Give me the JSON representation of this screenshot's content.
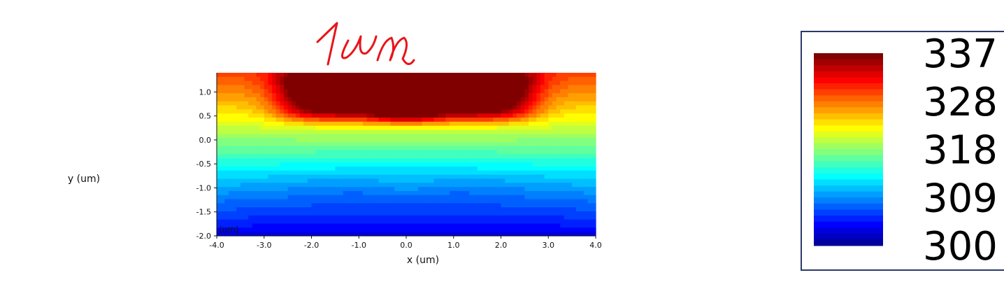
{
  "chart_data": {
    "type": "heatmap",
    "title": "",
    "xlabel": "x (um)",
    "ylabel": "y (um)",
    "corner_label": "(um)",
    "xlim": [
      -4.0,
      4.0
    ],
    "ylim": [
      -2.0,
      1.4
    ],
    "x_ticks": [
      "-4.0",
      "-3.0",
      "-2.0",
      "-1.0",
      "0.0",
      "1.0",
      "2.0",
      "3.0",
      "4.0"
    ],
    "y_ticks": [
      "1.0",
      "0.5",
      "0.0",
      "-0.5",
      "-1.0",
      "-1.5",
      "-2.0"
    ],
    "colorbar": {
      "min": 300,
      "max": 337,
      "ticks": [
        "337",
        "328",
        "318",
        "309",
        "300"
      ],
      "colormap": "jet"
    },
    "grid": false,
    "legend": "right",
    "annotation": "1um"
  },
  "colors": {
    "frame": "#2b3a6b",
    "text": "#111111",
    "annotation": "#e8141a"
  }
}
